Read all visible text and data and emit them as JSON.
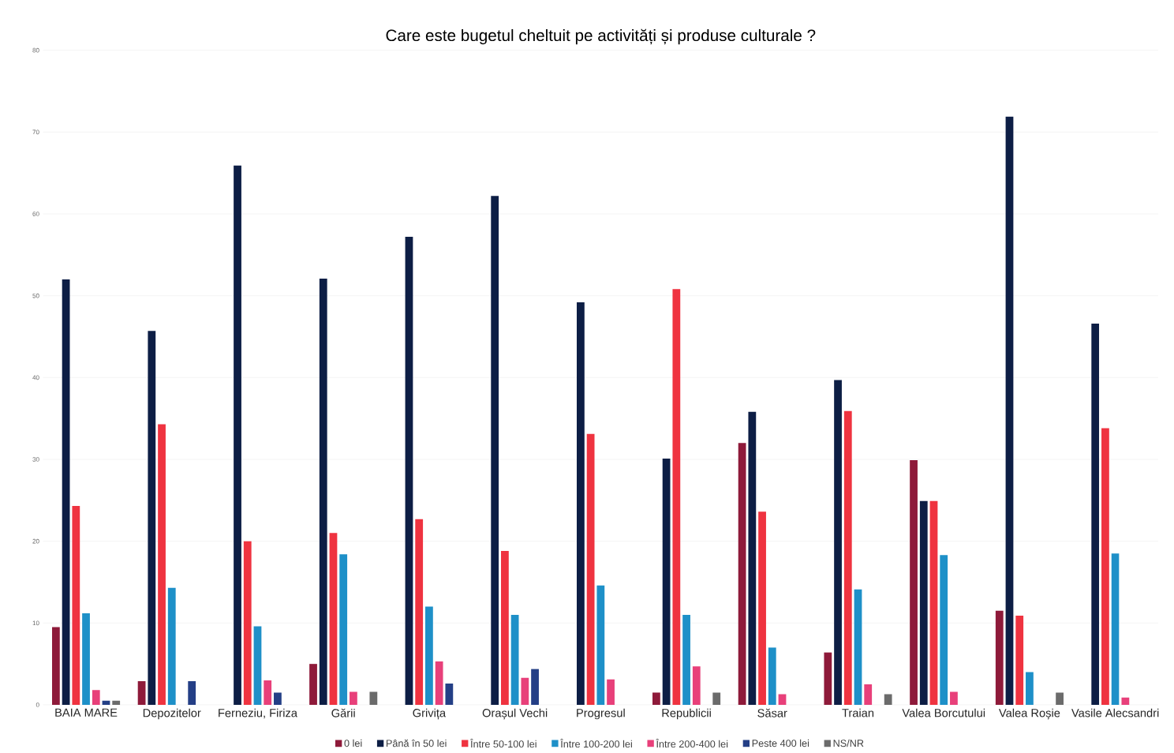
{
  "chart_data": {
    "type": "bar",
    "title": "Care este bugetul cheltuit pe activități și produse culturale ?",
    "categories": [
      "BAIA MARE",
      "Depozitelor",
      "Ferneziu, Firiza",
      "Gării",
      "Grivița",
      "Orașul Vechi",
      "Progresul",
      "Republicii",
      "Săsar",
      "Traian",
      "Valea Borcutului",
      "Valea Roșie",
      "Vasile Alecsandri"
    ],
    "series": [
      {
        "name": "0 lei",
        "color": "#8e1a3a",
        "values": [
          9.5,
          2.9,
          null,
          5.0,
          null,
          null,
          null,
          1.5,
          32.0,
          6.4,
          29.9,
          11.5,
          null
        ]
      },
      {
        "name": "Până în 50 lei",
        "color": "#0d1e45",
        "values": [
          52.0,
          45.7,
          65.9,
          52.1,
          57.2,
          62.2,
          49.2,
          30.1,
          35.8,
          39.7,
          24.9,
          71.9,
          46.6
        ]
      },
      {
        "name": "Între 50-100 lei",
        "color": "#ef3340",
        "values": [
          24.3,
          34.3,
          20.0,
          21.0,
          22.7,
          18.8,
          33.1,
          50.8,
          23.6,
          35.9,
          24.9,
          10.9,
          33.8
        ]
      },
      {
        "name": "Între 100-200 lei",
        "color": "#1e90c8",
        "values": [
          11.2,
          14.3,
          9.6,
          18.4,
          12.0,
          11.0,
          14.6,
          11.0,
          7.0,
          14.1,
          18.3,
          4.0,
          18.5
        ]
      },
      {
        "name": "Între 200-400 lei",
        "color": "#e8407a",
        "values": [
          1.8,
          null,
          3.0,
          1.6,
          5.3,
          3.3,
          3.1,
          4.7,
          1.3,
          2.5,
          1.6,
          null,
          0.9
        ]
      },
      {
        "name": "Peste 400 lei",
        "color": "#243f86",
        "values": [
          0.5,
          2.9,
          1.5,
          null,
          2.6,
          4.4,
          null,
          null,
          null,
          null,
          null,
          null,
          null
        ]
      },
      {
        "name": "NS/NR",
        "color": "#6b6b6b",
        "values": [
          0.5,
          null,
          null,
          1.6,
          null,
          null,
          null,
          1.5,
          null,
          1.3,
          null,
          1.5,
          null
        ]
      }
    ],
    "ylim": [
      0,
      80
    ],
    "yticks": [
      0,
      10,
      20,
      30,
      40,
      50,
      60,
      70,
      80
    ],
    "grid": "y",
    "legend": "bottom"
  }
}
